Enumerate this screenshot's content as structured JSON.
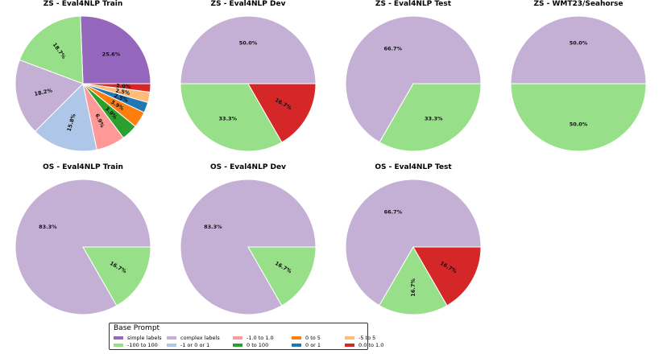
{
  "colors": {
    "simple labels": "#9467bd",
    "complex labels": "#c5b0d5",
    "-1.0 to 1.0": "#ff9896",
    "0 to 5": "#ff7f0e",
    "-5 to 5": "#ffbb78",
    "-100 to 100": "#98df8a",
    "-1 or 0 or 1": "#aec7e8",
    "0 to 100": "#2ca02c",
    "0 or 1": "#1f77b4",
    "0.0 to 1.0": "#d62728"
  },
  "legend": {
    "title": "Base Prompt",
    "items": [
      "simple labels",
      "-100 to 100",
      "complex labels",
      "-1 or 0 or 1",
      "-1.0 to 1.0",
      "0 to 100",
      "0 to 5",
      "0 or 1",
      "-5 to 5",
      "0.0 to 1.0"
    ]
  },
  "chart_data": [
    {
      "type": "pie",
      "title": "ZS - Eval4NLP Train",
      "slices": [
        {
          "label": "simple labels",
          "value": 25.6,
          "text": "25.6%"
        },
        {
          "label": "-100 to 100",
          "value": 18.7,
          "text": "18.7%"
        },
        {
          "label": "complex labels",
          "value": 18.2,
          "text": "18.2%"
        },
        {
          "label": "-1 or 0 or 1",
          "value": 15.8,
          "text": "15.8%"
        },
        {
          "label": "-1.0 to 1.0",
          "value": 6.9,
          "text": "6.9%"
        },
        {
          "label": "0 to 100",
          "value": 3.9,
          "text": "3.9%"
        },
        {
          "label": "0 to 5",
          "value": 3.9,
          "text": "3.9%"
        },
        {
          "label": "0 or 1",
          "value": 2.5,
          "text": "2.5%"
        },
        {
          "label": "-5 to 5",
          "value": 2.5,
          "text": "2.5%"
        },
        {
          "label": "0.0 to 1.0",
          "value": 2.0,
          "text": "2.0%"
        }
      ]
    },
    {
      "type": "pie",
      "title": "ZS - Eval4NLP Dev",
      "slices": [
        {
          "label": "complex labels",
          "value": 50.0,
          "text": "50.0%"
        },
        {
          "label": "-100 to 100",
          "value": 33.3,
          "text": "33.3%"
        },
        {
          "label": "0.0 to 1.0",
          "value": 16.7,
          "text": "16.7%"
        }
      ]
    },
    {
      "type": "pie",
      "title": "ZS - Eval4NLP Test",
      "slices": [
        {
          "label": "complex labels",
          "value": 66.7,
          "text": "66.7%"
        },
        {
          "label": "-100 to 100",
          "value": 33.3,
          "text": "33.3%"
        }
      ]
    },
    {
      "type": "pie",
      "title": "ZS - WMT23/Seahorse",
      "slices": [
        {
          "label": "complex labels",
          "value": 50.0,
          "text": "50.0%"
        },
        {
          "label": "-100 to 100",
          "value": 50.0,
          "text": "50.0%"
        }
      ]
    },
    {
      "type": "pie",
      "title": "OS - Eval4NLP Train",
      "slices": [
        {
          "label": "complex labels",
          "value": 83.3,
          "text": "83.3%"
        },
        {
          "label": "-100 to 100",
          "value": 16.7,
          "text": "16.7%"
        }
      ]
    },
    {
      "type": "pie",
      "title": "OS - Eval4NLP Dev",
      "slices": [
        {
          "label": "complex labels",
          "value": 83.3,
          "text": "83.3%"
        },
        {
          "label": "-100 to 100",
          "value": 16.7,
          "text": "16.7%"
        }
      ]
    },
    {
      "type": "pie",
      "title": "OS - Eval4NLP Test",
      "slices": [
        {
          "label": "complex labels",
          "value": 66.7,
          "text": "66.7%"
        },
        {
          "label": "-100 to 100",
          "value": 16.7,
          "text": "16.7%"
        },
        {
          "label": "0.0 to 1.0",
          "value": 16.7,
          "text": "16.7%"
        }
      ]
    }
  ]
}
